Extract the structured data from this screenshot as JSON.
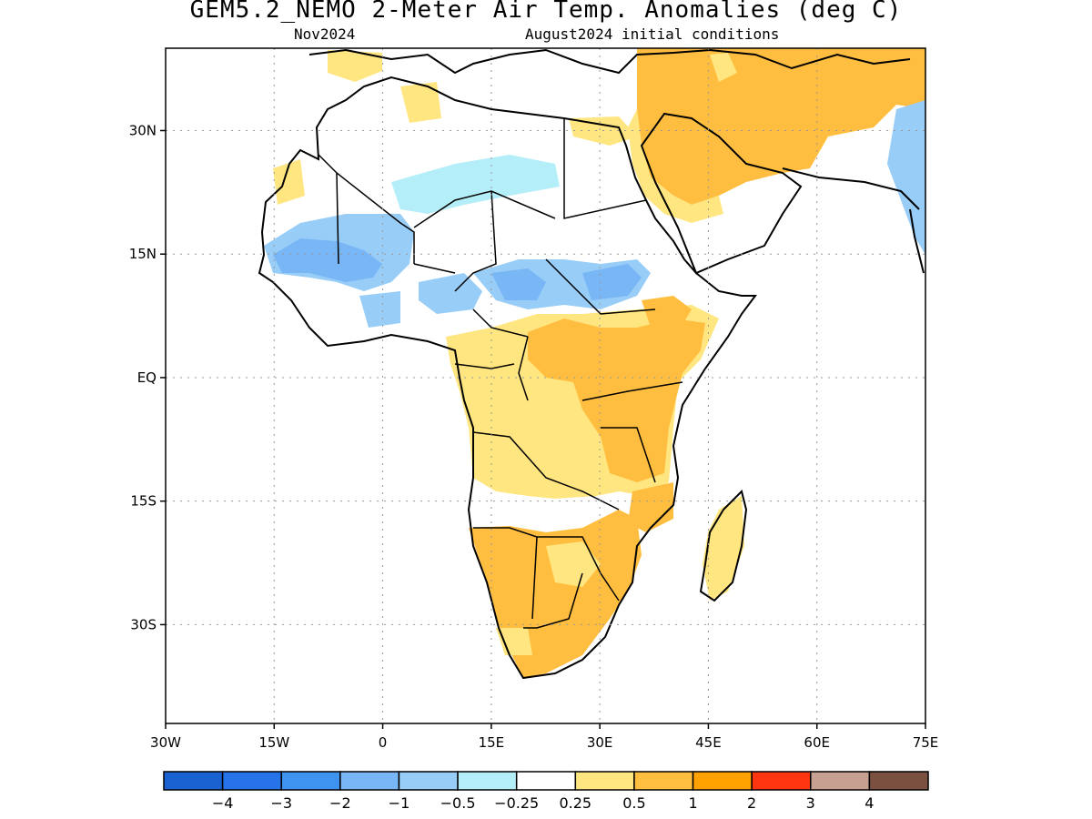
{
  "title": "GEM5.2_NEMO 2-Meter Air Temp. Anomalies (deg C)",
  "subtitle_left": "Nov2024",
  "subtitle_right": "August2024 initial conditions",
  "map": {
    "lon_range": [
      -30,
      75
    ],
    "lat_range": [
      -42,
      40
    ],
    "lon_ticks": [
      {
        "value": -30,
        "label": "30W"
      },
      {
        "value": -15,
        "label": "15W"
      },
      {
        "value": 0,
        "label": "0"
      },
      {
        "value": 15,
        "label": "15E"
      },
      {
        "value": 30,
        "label": "30E"
      },
      {
        "value": 45,
        "label": "45E"
      },
      {
        "value": 60,
        "label": "60E"
      },
      {
        "value": 75,
        "label": "75E"
      }
    ],
    "lat_ticks": [
      {
        "value": 30,
        "label": "30N"
      },
      {
        "value": 15,
        "label": "15N"
      },
      {
        "value": 0,
        "label": "EQ"
      },
      {
        "value": -15,
        "label": "15S"
      },
      {
        "value": -30,
        "label": "30S"
      }
    ],
    "gridlines": "dotted"
  },
  "colorbar": {
    "colors": [
      "#1a62d2",
      "#2672e8",
      "#3e92f0",
      "#78b6f6",
      "#98cdf8",
      "#b4eef8",
      "#ffffff",
      "#ffe680",
      "#ffbe40",
      "#ffa200",
      "#ff3510",
      "#c8a092",
      "#7a5040"
    ],
    "labels": [
      "-4",
      "-3",
      "-2",
      "-1",
      "-0.5",
      "-0.25",
      "0.25",
      "0.5",
      "1",
      "2",
      "3",
      "4"
    ]
  }
}
